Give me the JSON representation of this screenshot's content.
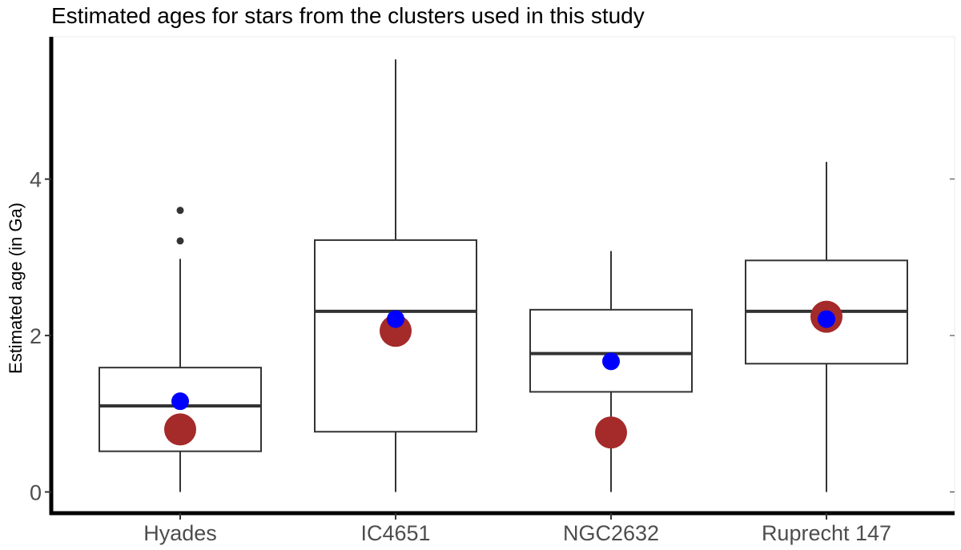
{
  "chart_data": {
    "type": "boxplot",
    "title": "Estimated ages for stars from the clusters used in this study",
    "xlabel": "",
    "ylabel": "Estimated age (in Ga)",
    "ylim": [
      0,
      5.6
    ],
    "yticks": [
      0,
      2,
      4
    ],
    "grid": false,
    "categories": [
      "Hyades",
      "IC4651",
      "NGC2632",
      "Ruprecht 147"
    ],
    "boxes": [
      {
        "category": "Hyades",
        "whisker_low": 0.0,
        "q1": 0.52,
        "median": 1.1,
        "q3": 1.59,
        "whisker_high": 2.98,
        "outliers": [
          3.21,
          3.6
        ]
      },
      {
        "category": "IC4651",
        "whisker_low": 0.0,
        "q1": 0.77,
        "median": 2.31,
        "q3": 3.22,
        "whisker_high": 5.53,
        "outliers": []
      },
      {
        "category": "NGC2632",
        "whisker_low": 0.0,
        "q1": 1.28,
        "median": 1.77,
        "q3": 2.33,
        "whisker_high": 3.08,
        "outliers": []
      },
      {
        "category": "Ruprecht 147",
        "whisker_low": 0.0,
        "q1": 1.64,
        "median": 2.31,
        "q3": 2.96,
        "whisker_high": 4.22,
        "outliers": []
      }
    ],
    "point_series": [
      {
        "color": "#a52a2a",
        "values": [
          0.8,
          2.06,
          0.76,
          2.24
        ]
      },
      {
        "color": "#0000ff",
        "values": [
          1.16,
          2.21,
          1.67,
          2.21
        ]
      }
    ],
    "colors": {
      "box_stroke": "#333333",
      "axis": "#000000",
      "outlier": "#333333"
    }
  }
}
